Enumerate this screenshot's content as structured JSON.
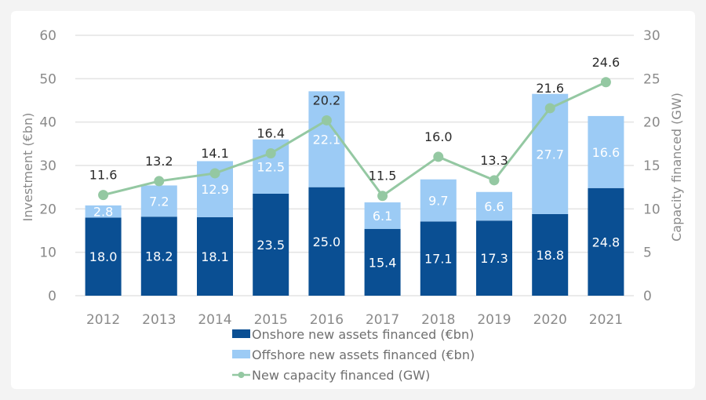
{
  "chart_data": {
    "type": "bar",
    "subtype": "stacked-bar-with-line-secondary-axis",
    "title": "",
    "categories": [
      "2012",
      "2013",
      "2014",
      "2015",
      "2016",
      "2017",
      "2018",
      "2019",
      "2020",
      "2021"
    ],
    "series": [
      {
        "name": "Onshore new assets financed (€bn)",
        "kind": "bar",
        "axis": "left",
        "color": "#0a4f93",
        "values": [
          18.0,
          18.2,
          18.1,
          23.5,
          25.0,
          15.4,
          17.1,
          17.3,
          18.8,
          24.8
        ],
        "labels": [
          "18.0",
          "18.2",
          "18.1",
          "23.5",
          "25.0",
          "15.4",
          "17.1",
          "17.3",
          "18.8",
          "24.8"
        ]
      },
      {
        "name": "Offshore new assets financed (€bn)",
        "kind": "bar",
        "axis": "left",
        "color": "#9ccbf5",
        "values": [
          2.8,
          7.2,
          12.9,
          12.5,
          22.1,
          6.1,
          9.7,
          6.6,
          27.7,
          16.6
        ],
        "labels": [
          "2.8",
          "7.2",
          "12.9",
          "12.5",
          "22.1",
          "6.1",
          "9.7",
          "6.6",
          "27.7",
          "16.6"
        ]
      },
      {
        "name": "New capacity financed (GW)",
        "kind": "line",
        "axis": "right",
        "color": "#94c8a2",
        "values": [
          11.6,
          13.2,
          14.1,
          16.4,
          20.2,
          11.5,
          16.0,
          13.3,
          21.6,
          24.6
        ],
        "labels": [
          "11.6",
          "13.2",
          "14.1",
          "16.4",
          "20.2",
          "11.5",
          "16.0",
          "13.3",
          "21.6",
          "24.6"
        ]
      }
    ],
    "ylabel": "Investment (€bn)",
    "ylim": [
      0,
      60
    ],
    "yticks": [
      "0",
      "10",
      "20",
      "30",
      "40",
      "50",
      "60"
    ],
    "y2label": "Capacity financed (GW)",
    "y2lim": [
      0,
      30
    ],
    "y2ticks": [
      "0",
      "5",
      "10",
      "15",
      "20",
      "25",
      "30"
    ],
    "grid": true,
    "legend_position": "bottom-center",
    "legend": [
      {
        "label": "Onshore new assets financed (€bn)",
        "marker": "square",
        "color": "#0a4f93"
      },
      {
        "label": "Offshore new assets financed (€bn)",
        "marker": "square",
        "color": "#9ccbf5"
      },
      {
        "label": "New capacity financed (GW)",
        "marker": "line-dot",
        "color": "#94c8a2"
      }
    ]
  }
}
